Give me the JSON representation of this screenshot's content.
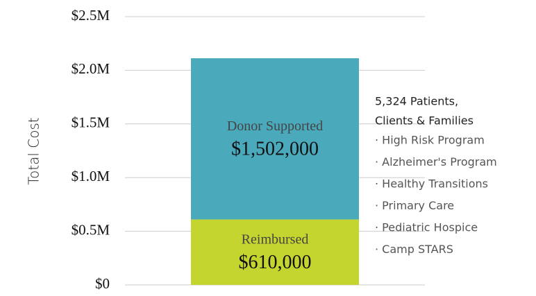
{
  "chart_data": {
    "type": "stacked_bar",
    "categories": [
      null
    ],
    "series": [
      {
        "name": "Reimbursed",
        "color": "#c5d52f",
        "values": [
          610000
        ],
        "value_labels": [
          "$610,000"
        ]
      },
      {
        "name": "Donor Supported",
        "color": "#4aa9bb",
        "values": [
          1502000
        ],
        "value_labels": [
          "$1,502,000"
        ]
      }
    ],
    "ylabel": "Total Cost",
    "ylim": [
      0,
      2500000
    ],
    "yticks": [
      {
        "value": 0,
        "label": "$0"
      },
      {
        "value": 500000,
        "label": "$0.5M"
      },
      {
        "value": 1000000,
        "label": "$1.0M"
      },
      {
        "value": 1500000,
        "label": "$1.5M"
      },
      {
        "value": 2000000,
        "label": "$2.0M"
      },
      {
        "value": 2500000,
        "label": "$2.5M"
      }
    ],
    "grid": true,
    "annotation": {
      "heading": [
        "5,324 Patients,",
        "Clients & Families"
      ],
      "items": [
        "· High Risk Program",
        "· Alzheimer's Program",
        "· Healthy Transitions",
        "· Primary Care",
        "· Pediatric Hospice",
        "· Camp STARS"
      ]
    }
  }
}
